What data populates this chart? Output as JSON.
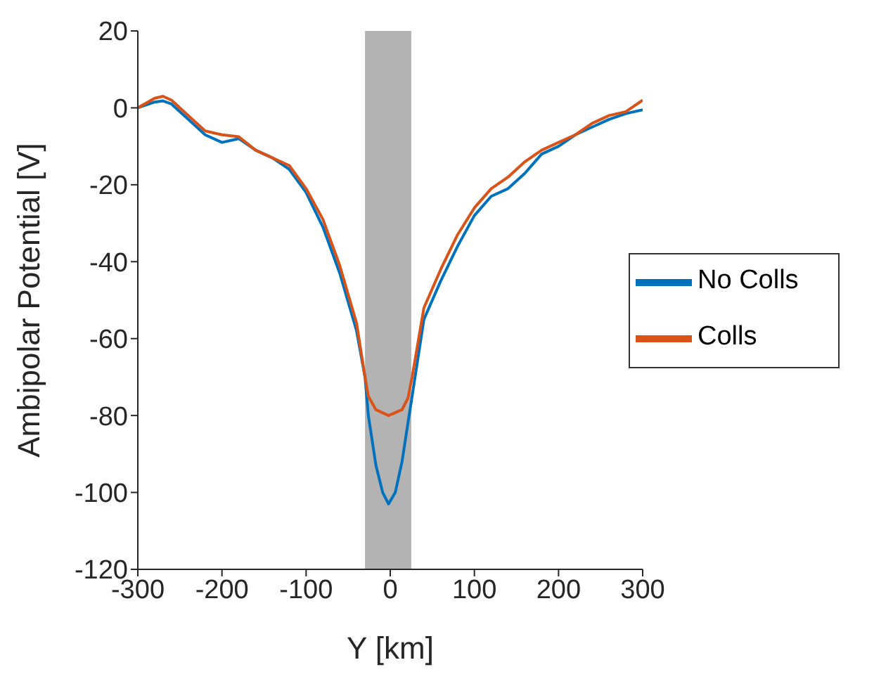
{
  "chart_data": {
    "type": "line",
    "xlabel": "Y [km]",
    "ylabel": "Ambipolar Potential [V]",
    "xlim": [
      -300,
      300
    ],
    "xticks": [
      -300,
      -200,
      -100,
      0,
      100,
      200,
      300
    ],
    "ylim": [
      -120,
      20
    ],
    "yticks": [
      -120,
      -100,
      -80,
      -60,
      -40,
      -20,
      0,
      20
    ],
    "grid": false,
    "legend": "right",
    "marker": "none",
    "line_style": "solid",
    "bands": [
      {
        "axis": "x",
        "from": -30,
        "to": 25,
        "color": "#b3b3b3"
      }
    ],
    "series": [
      {
        "name": "No Colls",
        "color": "#0072bd",
        "x": [
          -300,
          -280,
          -270,
          -260,
          -240,
          -220,
          -200,
          -180,
          -160,
          -140,
          -120,
          -100,
          -80,
          -60,
          -40,
          -30,
          -26,
          -17,
          -9,
          -2,
          6,
          14,
          21,
          26,
          40,
          60,
          80,
          100,
          120,
          140,
          160,
          180,
          200,
          220,
          240,
          260,
          280,
          300
        ],
        "values": [
          0,
          1.5,
          1.8,
          1,
          -3,
          -7,
          -9,
          -8,
          -11,
          -13,
          -16,
          -22,
          -31,
          -43,
          -58,
          -70,
          -80,
          -93,
          -100,
          -103,
          -100,
          -92,
          -82,
          -75,
          -55,
          -45,
          -36,
          -28,
          -23,
          -21,
          -17,
          -12,
          -10,
          -7,
          -5,
          -3,
          -1.5,
          -0.5
        ]
      },
      {
        "name": "Colls",
        "color": "#d95319",
        "x": [
          -300,
          -280,
          -270,
          -260,
          -240,
          -220,
          -200,
          -180,
          -160,
          -140,
          -120,
          -100,
          -80,
          -60,
          -40,
          -30,
          -26,
          -17,
          -2,
          14,
          21,
          26,
          40,
          60,
          80,
          100,
          120,
          140,
          160,
          180,
          200,
          220,
          240,
          260,
          280,
          300
        ],
        "values": [
          0,
          2.5,
          3,
          2,
          -2,
          -6,
          -7,
          -7.5,
          -11,
          -13,
          -15,
          -21,
          -29,
          -41,
          -56,
          -70,
          -75,
          -78.5,
          -80,
          -78.5,
          -75.5,
          -70,
          -52,
          -42,
          -33,
          -26,
          -21,
          -18,
          -14,
          -11,
          -9,
          -7,
          -4,
          -2,
          -1,
          2
        ]
      }
    ]
  }
}
